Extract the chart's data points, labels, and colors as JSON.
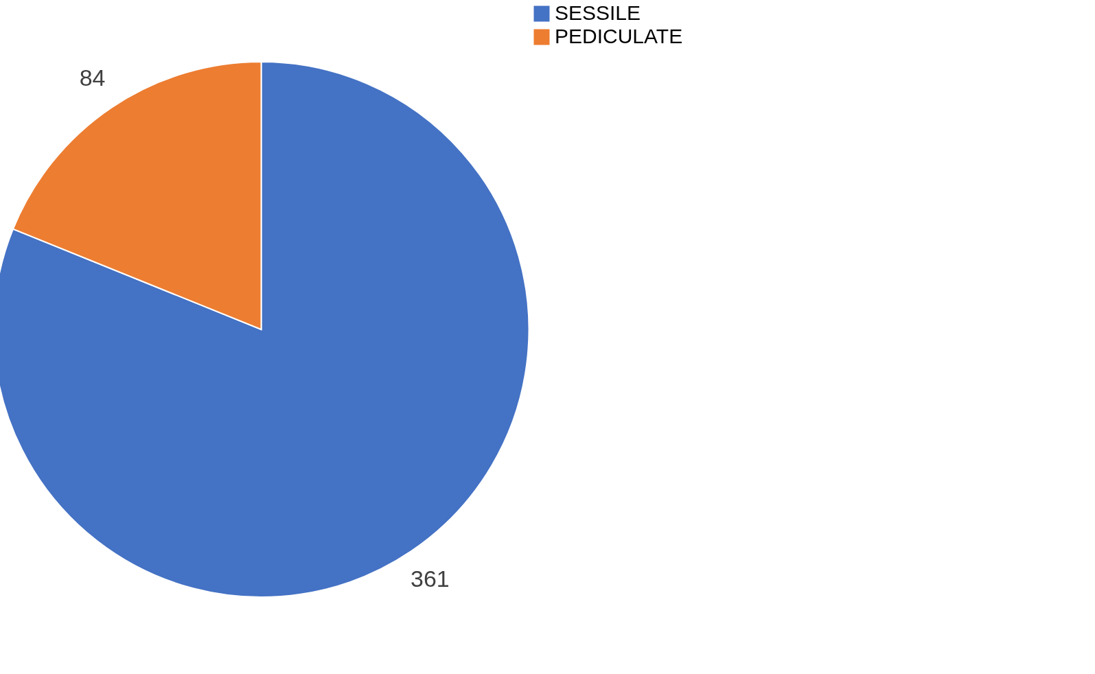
{
  "chart_data": {
    "type": "pie",
    "categories": [
      "SESSILE",
      "PEDICULATE"
    ],
    "values": [
      361,
      84
    ],
    "colors": [
      "#4472c4",
      "#ed7d31"
    ],
    "data_labels": true,
    "legend": "right"
  }
}
